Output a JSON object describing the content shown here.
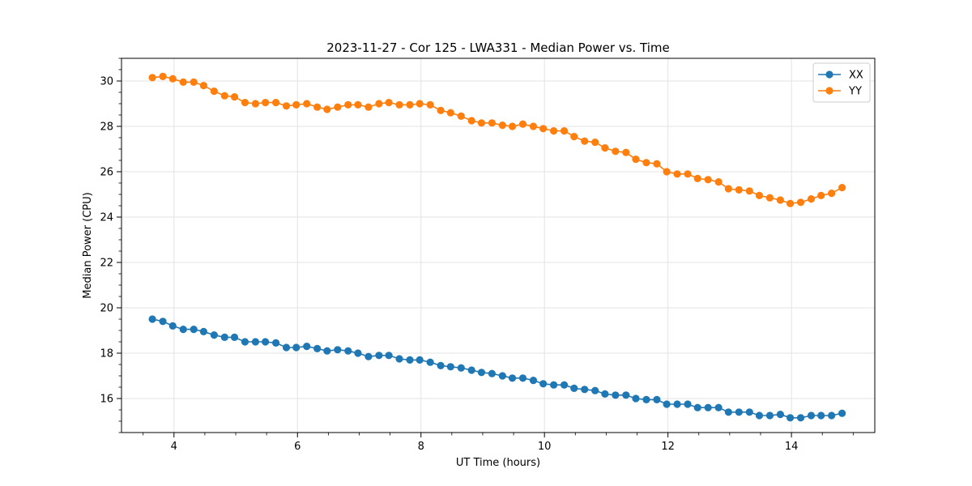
{
  "chart_data": {
    "type": "line",
    "title": "2023-11-27 - Cor 125 - LWA331 - Median Power vs. Time",
    "xlabel": "UT Time (hours)",
    "ylabel": "Median Power (CPU)",
    "xlim": [
      3.15,
      15.35
    ],
    "ylim": [
      14.5,
      31.0
    ],
    "xticks": [
      4,
      6,
      8,
      10,
      12,
      14
    ],
    "yticks": [
      16,
      18,
      20,
      22,
      24,
      26,
      28,
      30
    ],
    "grid": true,
    "legend_position": "top-right",
    "x": [
      3.65,
      3.82,
      3.98,
      4.15,
      4.32,
      4.48,
      4.65,
      4.82,
      4.98,
      5.15,
      5.32,
      5.48,
      5.65,
      5.82,
      5.98,
      6.15,
      6.32,
      6.48,
      6.65,
      6.82,
      6.98,
      7.15,
      7.32,
      7.48,
      7.65,
      7.82,
      7.98,
      8.15,
      8.32,
      8.48,
      8.65,
      8.82,
      8.98,
      9.15,
      9.32,
      9.48,
      9.65,
      9.82,
      9.98,
      10.15,
      10.32,
      10.48,
      10.65,
      10.82,
      10.98,
      11.15,
      11.32,
      11.48,
      11.65,
      11.82,
      11.98,
      12.15,
      12.32,
      12.48,
      12.65,
      12.82,
      12.98,
      13.15,
      13.32,
      13.48,
      13.65,
      13.82,
      13.98,
      14.15,
      14.32,
      14.48,
      14.65,
      14.82
    ],
    "series": [
      {
        "name": "XX",
        "color": "#1f77b4",
        "values": [
          19.5,
          19.4,
          19.2,
          19.05,
          19.05,
          18.95,
          18.8,
          18.7,
          18.7,
          18.5,
          18.5,
          18.5,
          18.45,
          18.25,
          18.25,
          18.3,
          18.2,
          18.1,
          18.15,
          18.1,
          18.0,
          17.85,
          17.9,
          17.9,
          17.75,
          17.7,
          17.7,
          17.6,
          17.45,
          17.4,
          17.35,
          17.25,
          17.15,
          17.1,
          17.0,
          16.9,
          16.9,
          16.8,
          16.65,
          16.6,
          16.6,
          16.45,
          16.4,
          16.35,
          16.2,
          16.15,
          16.15,
          16.0,
          15.95,
          15.95,
          15.75,
          15.75,
          15.75,
          15.6,
          15.6,
          15.6,
          15.4,
          15.4,
          15.4,
          15.25,
          15.25,
          15.3,
          15.15,
          15.15,
          15.25,
          15.25,
          15.25,
          15.35
        ]
      },
      {
        "name": "YY",
        "color": "#ff7f0e",
        "values": [
          30.15,
          30.2,
          30.1,
          29.95,
          29.95,
          29.8,
          29.55,
          29.35,
          29.3,
          29.05,
          29.0,
          29.05,
          29.05,
          28.9,
          28.95,
          29.0,
          28.85,
          28.75,
          28.85,
          28.95,
          28.95,
          28.85,
          29.0,
          29.05,
          28.95,
          28.95,
          29.0,
          28.95,
          28.7,
          28.6,
          28.45,
          28.25,
          28.15,
          28.15,
          28.05,
          28.0,
          28.1,
          28.0,
          27.9,
          27.8,
          27.8,
          27.55,
          27.35,
          27.3,
          27.05,
          26.9,
          26.85,
          26.55,
          26.4,
          26.35,
          26.0,
          25.9,
          25.9,
          25.7,
          25.65,
          25.55,
          25.25,
          25.2,
          25.15,
          24.95,
          24.85,
          24.75,
          24.6,
          24.65,
          24.8,
          24.95,
          25.05,
          25.3
        ]
      }
    ]
  }
}
